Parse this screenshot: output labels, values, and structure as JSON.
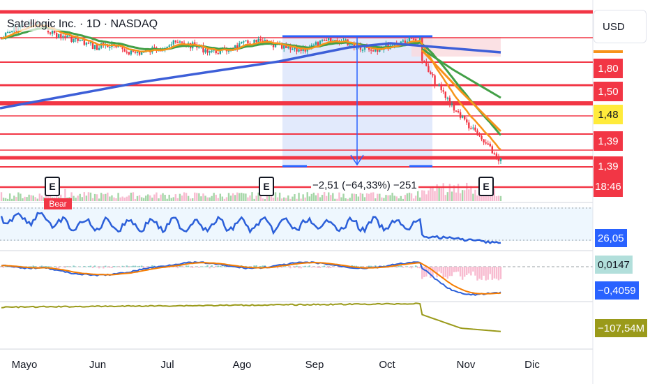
{
  "header": {
    "symbol_title": "Satellogic Inc. · 1D · NASDAQ",
    "currency": "USD"
  },
  "price_axis": {
    "tags": [
      {
        "value": "1,80",
        "bg": "#f23645",
        "fg": "#ffffff"
      },
      {
        "value": "1,50",
        "bg": "#f23645",
        "fg": "#ffffff"
      },
      {
        "value": "1,48",
        "bg": "#ffeb3b",
        "fg": "#131722"
      },
      {
        "value": "1,39",
        "bg": "#f23645",
        "fg": "#ffffff"
      },
      {
        "value": "1,39",
        "bg": "#f23645",
        "fg": "#ffffff"
      }
    ],
    "countdown": "18:46"
  },
  "measure": {
    "label": "−2,51 (−64,33%) −251"
  },
  "earnings_marker": "E",
  "signal_label": "Bear",
  "indicators": {
    "rsi_value": "26,05",
    "macd_value": "0,0147",
    "signal_value": "−0,4059",
    "obv_value": "−107,54M"
  },
  "time_axis": {
    "months": [
      "Mayo",
      "Jun",
      "Jul",
      "Ago",
      "Sep",
      "Oct",
      "Nov",
      "Dic"
    ]
  },
  "colors": {
    "up": "#26a69a",
    "down": "#f23645",
    "ema_fast": "#f7931a",
    "ema_slow": "#43a047",
    "ma_long": "#3d5fd8",
    "rsi_line": "#2b5fd9",
    "macd_line": "#2b5fd9",
    "signal_line": "#f57c00",
    "obv_line": "#9a9a1a",
    "level_line": "#f23645"
  }
}
